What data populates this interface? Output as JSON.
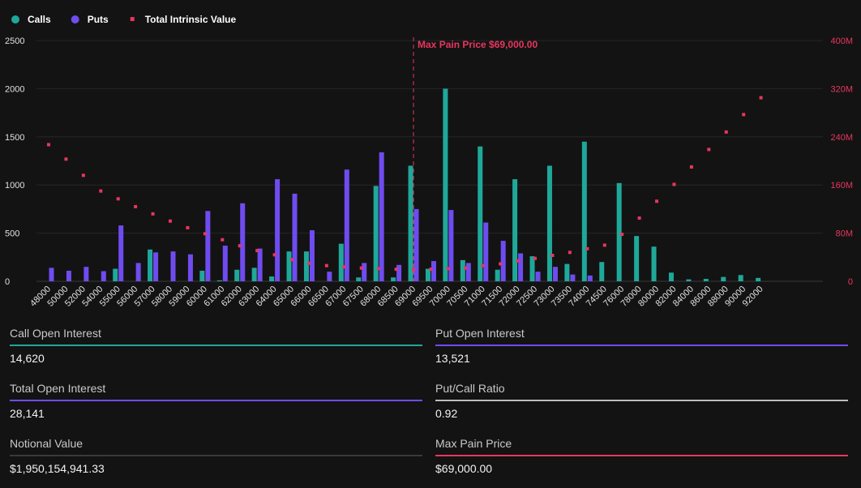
{
  "chart_data": {
    "type": "bar",
    "categories": [
      "48000",
      "50000",
      "52000",
      "54000",
      "55000",
      "56000",
      "57000",
      "58000",
      "59000",
      "60000",
      "61000",
      "62000",
      "63000",
      "64000",
      "65000",
      "66000",
      "66500",
      "67000",
      "67500",
      "68000",
      "68500",
      "69000",
      "69500",
      "70000",
      "70500",
      "71000",
      "71500",
      "72000",
      "72500",
      "73000",
      "73500",
      "74000",
      "74500",
      "76000",
      "78000",
      "80000",
      "82000",
      "84000",
      "86000",
      "88000",
      "90000",
      "92000"
    ],
    "series": [
      {
        "name": "Calls",
        "type": "bar",
        "axis": "left",
        "color": "#1fa89a",
        "values": [
          0,
          0,
          0,
          0,
          130,
          0,
          330,
          0,
          0,
          110,
          10,
          120,
          140,
          50,
          310,
          310,
          0,
          390,
          40,
          990,
          40,
          1200,
          130,
          2000,
          220,
          1400,
          120,
          1060,
          260,
          1200,
          180,
          1450,
          200,
          1020,
          470,
          360,
          90,
          20,
          25,
          45,
          65,
          35
        ]
      },
      {
        "name": "Puts",
        "type": "bar",
        "axis": "left",
        "color": "#6f4cf0",
        "values": [
          140,
          110,
          150,
          105,
          580,
          190,
          300,
          310,
          280,
          730,
          370,
          810,
          340,
          1060,
          910,
          530,
          100,
          1160,
          190,
          1340,
          170,
          750,
          210,
          740,
          190,
          610,
          420,
          290,
          100,
          150,
          70,
          60,
          0,
          0,
          0,
          0,
          0,
          0,
          0,
          0,
          0,
          0
        ]
      },
      {
        "name": "Total Intrinsic Value",
        "type": "scatter",
        "axis": "right",
        "color": "#e8365d",
        "values": [
          227000000,
          203000000,
          176000000,
          150000000,
          137000000,
          124000000,
          112000000,
          100000000,
          89000000,
          79000000,
          69000000,
          59000000,
          51000000,
          44000000,
          36000000,
          30000000,
          26000000,
          24000000,
          22000000,
          21000000,
          20000000,
          20000000,
          20000000,
          21000000,
          22000000,
          26000000,
          29000000,
          34000000,
          38000000,
          43000000,
          48000000,
          54000000,
          60000000,
          78000000,
          105000000,
          133000000,
          161000000,
          190000000,
          219000000,
          248000000,
          277000000,
          305000000
        ]
      }
    ],
    "y_left": {
      "ticks": [
        "0",
        "500",
        "1000",
        "1500",
        "2000",
        "2500"
      ],
      "min": 0,
      "max": 2500
    },
    "y_right": {
      "ticks": [
        "0",
        "80M",
        "160M",
        "240M",
        "320M",
        "400M"
      ],
      "min": 0,
      "max": 400000000
    },
    "max_pain": {
      "category": "69000",
      "label": "Max Pain Price $69,000.00"
    },
    "legend_position": "top-left",
    "grid": true
  },
  "stats": [
    {
      "label": "Call Open Interest",
      "value": "14,620",
      "color": "#1fa89a"
    },
    {
      "label": "Put Open Interest",
      "value": "13,521",
      "color": "#6f4cf0"
    },
    {
      "label": "Total Open Interest",
      "value": "28,141",
      "color": "#6f4cf0"
    },
    {
      "label": "Put/Call Ratio",
      "value": "0.92",
      "color": "#bdbdbd"
    },
    {
      "label": "Notional Value",
      "value": "$1,950,154,941.33",
      "color": "#3a3a3a"
    },
    {
      "label": "Max Pain Price",
      "value": "$69,000.00",
      "color": "#e8365d"
    }
  ]
}
